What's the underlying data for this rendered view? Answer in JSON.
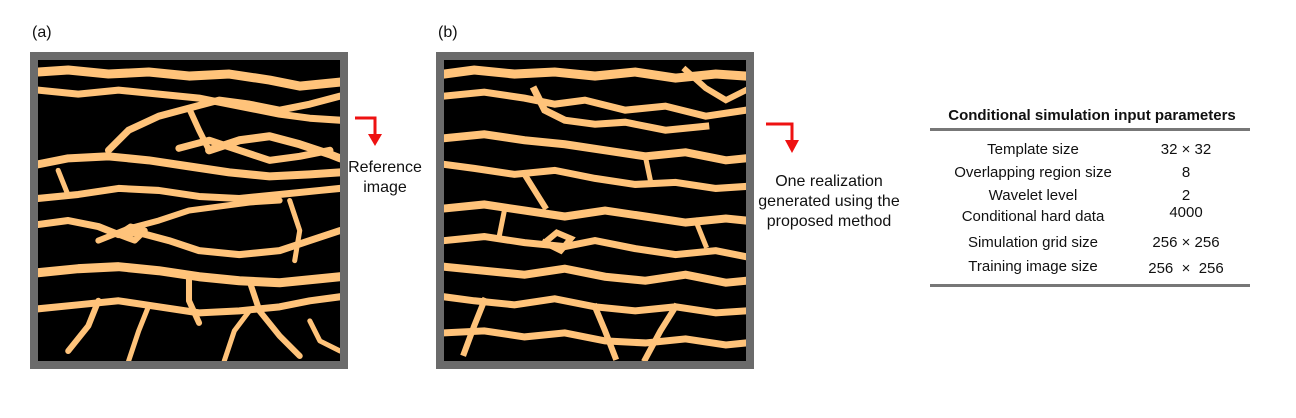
{
  "panels": {
    "a_label": "(a)",
    "b_label": "(b)"
  },
  "captions": {
    "reference": [
      "Reference",
      "image"
    ],
    "realization": [
      "One realization",
      "generated using the",
      "proposed method"
    ]
  },
  "colors": {
    "channel": "#ffc37a",
    "background": "#000000",
    "frame": "#6b6b6b",
    "arrow": "#ee1111"
  },
  "table": {
    "title": "Conditional simulation input parameters",
    "rows": [
      {
        "name": "Template size",
        "value": "32 × 32"
      },
      {
        "name": "Overlapping region size",
        "value": "8"
      },
      {
        "name": "Wavelet level",
        "value": "2"
      },
      {
        "name": "Conditional hard data",
        "value": "4000"
      },
      {
        "name": "Simulation grid size",
        "value": "256 × 256"
      },
      {
        "name": "Training image size",
        "value": "256  ×  256"
      }
    ]
  }
}
